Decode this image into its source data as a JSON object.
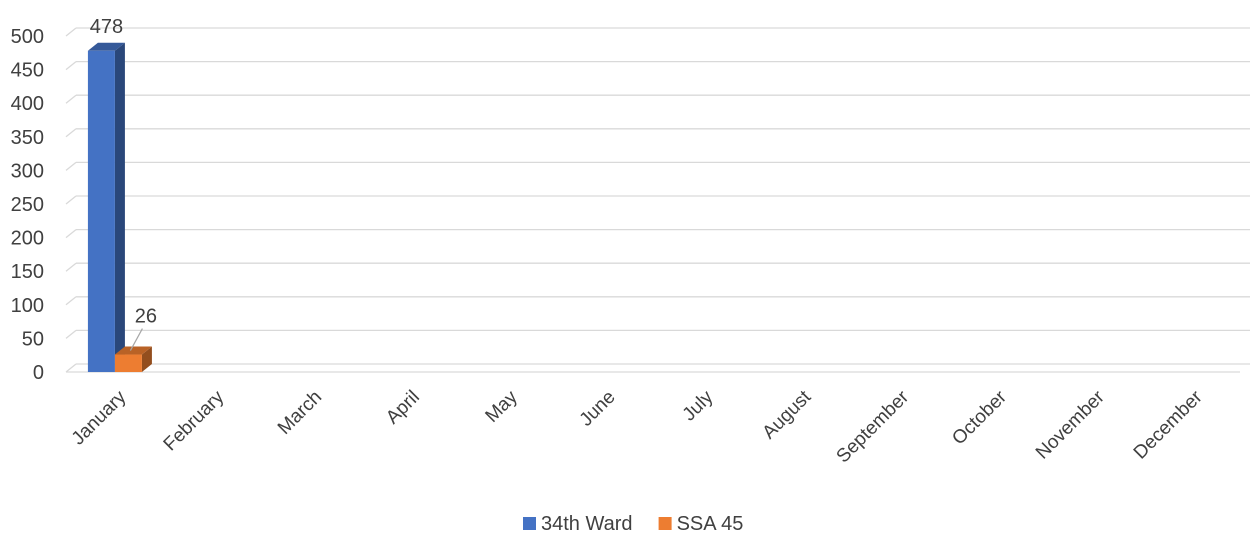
{
  "chart_data": {
    "type": "bar",
    "style": "3d-clustered-column",
    "categories": [
      "January",
      "February",
      "March",
      "April",
      "May",
      "June",
      "July",
      "August",
      "September",
      "October",
      "November",
      "December"
    ],
    "series": [
      {
        "name": "34th Ward",
        "color": "#4472c4",
        "values": [
          478,
          null,
          null,
          null,
          null,
          null,
          null,
          null,
          null,
          null,
          null,
          null
        ]
      },
      {
        "name": "SSA 45",
        "color": "#ed7d31",
        "values": [
          26,
          null,
          null,
          null,
          null,
          null,
          null,
          null,
          null,
          null,
          null,
          null
        ]
      }
    ],
    "data_labels": [
      {
        "series": 0,
        "category": 0,
        "text": "478"
      },
      {
        "series": 1,
        "category": 0,
        "text": "26"
      }
    ],
    "ylim": [
      0,
      500
    ],
    "yticks": [
      "0",
      "50",
      "100",
      "150",
      "200",
      "250",
      "300",
      "350",
      "400",
      "450",
      "500"
    ],
    "grid": true,
    "legend_position": "bottom",
    "title": "",
    "xlabel": "",
    "ylabel": ""
  }
}
